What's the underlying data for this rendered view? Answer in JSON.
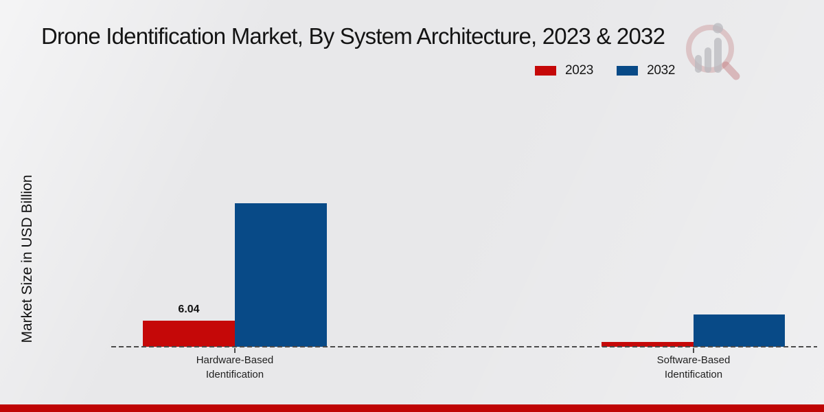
{
  "header": {
    "title": "Drone Identification Market, By System Architecture, 2023 & 2032"
  },
  "chart_data": {
    "type": "bar",
    "title": "Drone Identification Market, By System Architecture, 2023 & 2032",
    "xlabel": "",
    "ylabel": "Market Size in USD Billion",
    "categories": [
      "Hardware-Based Identification",
      "Software-Based Identification"
    ],
    "series": [
      {
        "name": "2023",
        "color": "#c50808",
        "values": [
          6.04,
          1.1
        ]
      },
      {
        "name": "2032",
        "color": "#084a87",
        "values": [
          33.5,
          7.6
        ]
      }
    ],
    "value_labels": [
      {
        "category": "Hardware-Based Identification",
        "series": "2023",
        "text": "6.04"
      }
    ],
    "ylim": [
      0,
      35
    ],
    "grid": false,
    "legend_position": "top-right",
    "baseline_style": "dashed"
  },
  "theme": {
    "accent_red": "#c50808",
    "accent_blue": "#084a87",
    "bottom_bar_color": "#bf0404",
    "baseline_color": "#4b4b4b",
    "background": "#e8e8ea"
  },
  "watermark": {
    "icon": "magnifier-bar-chart-logo"
  }
}
